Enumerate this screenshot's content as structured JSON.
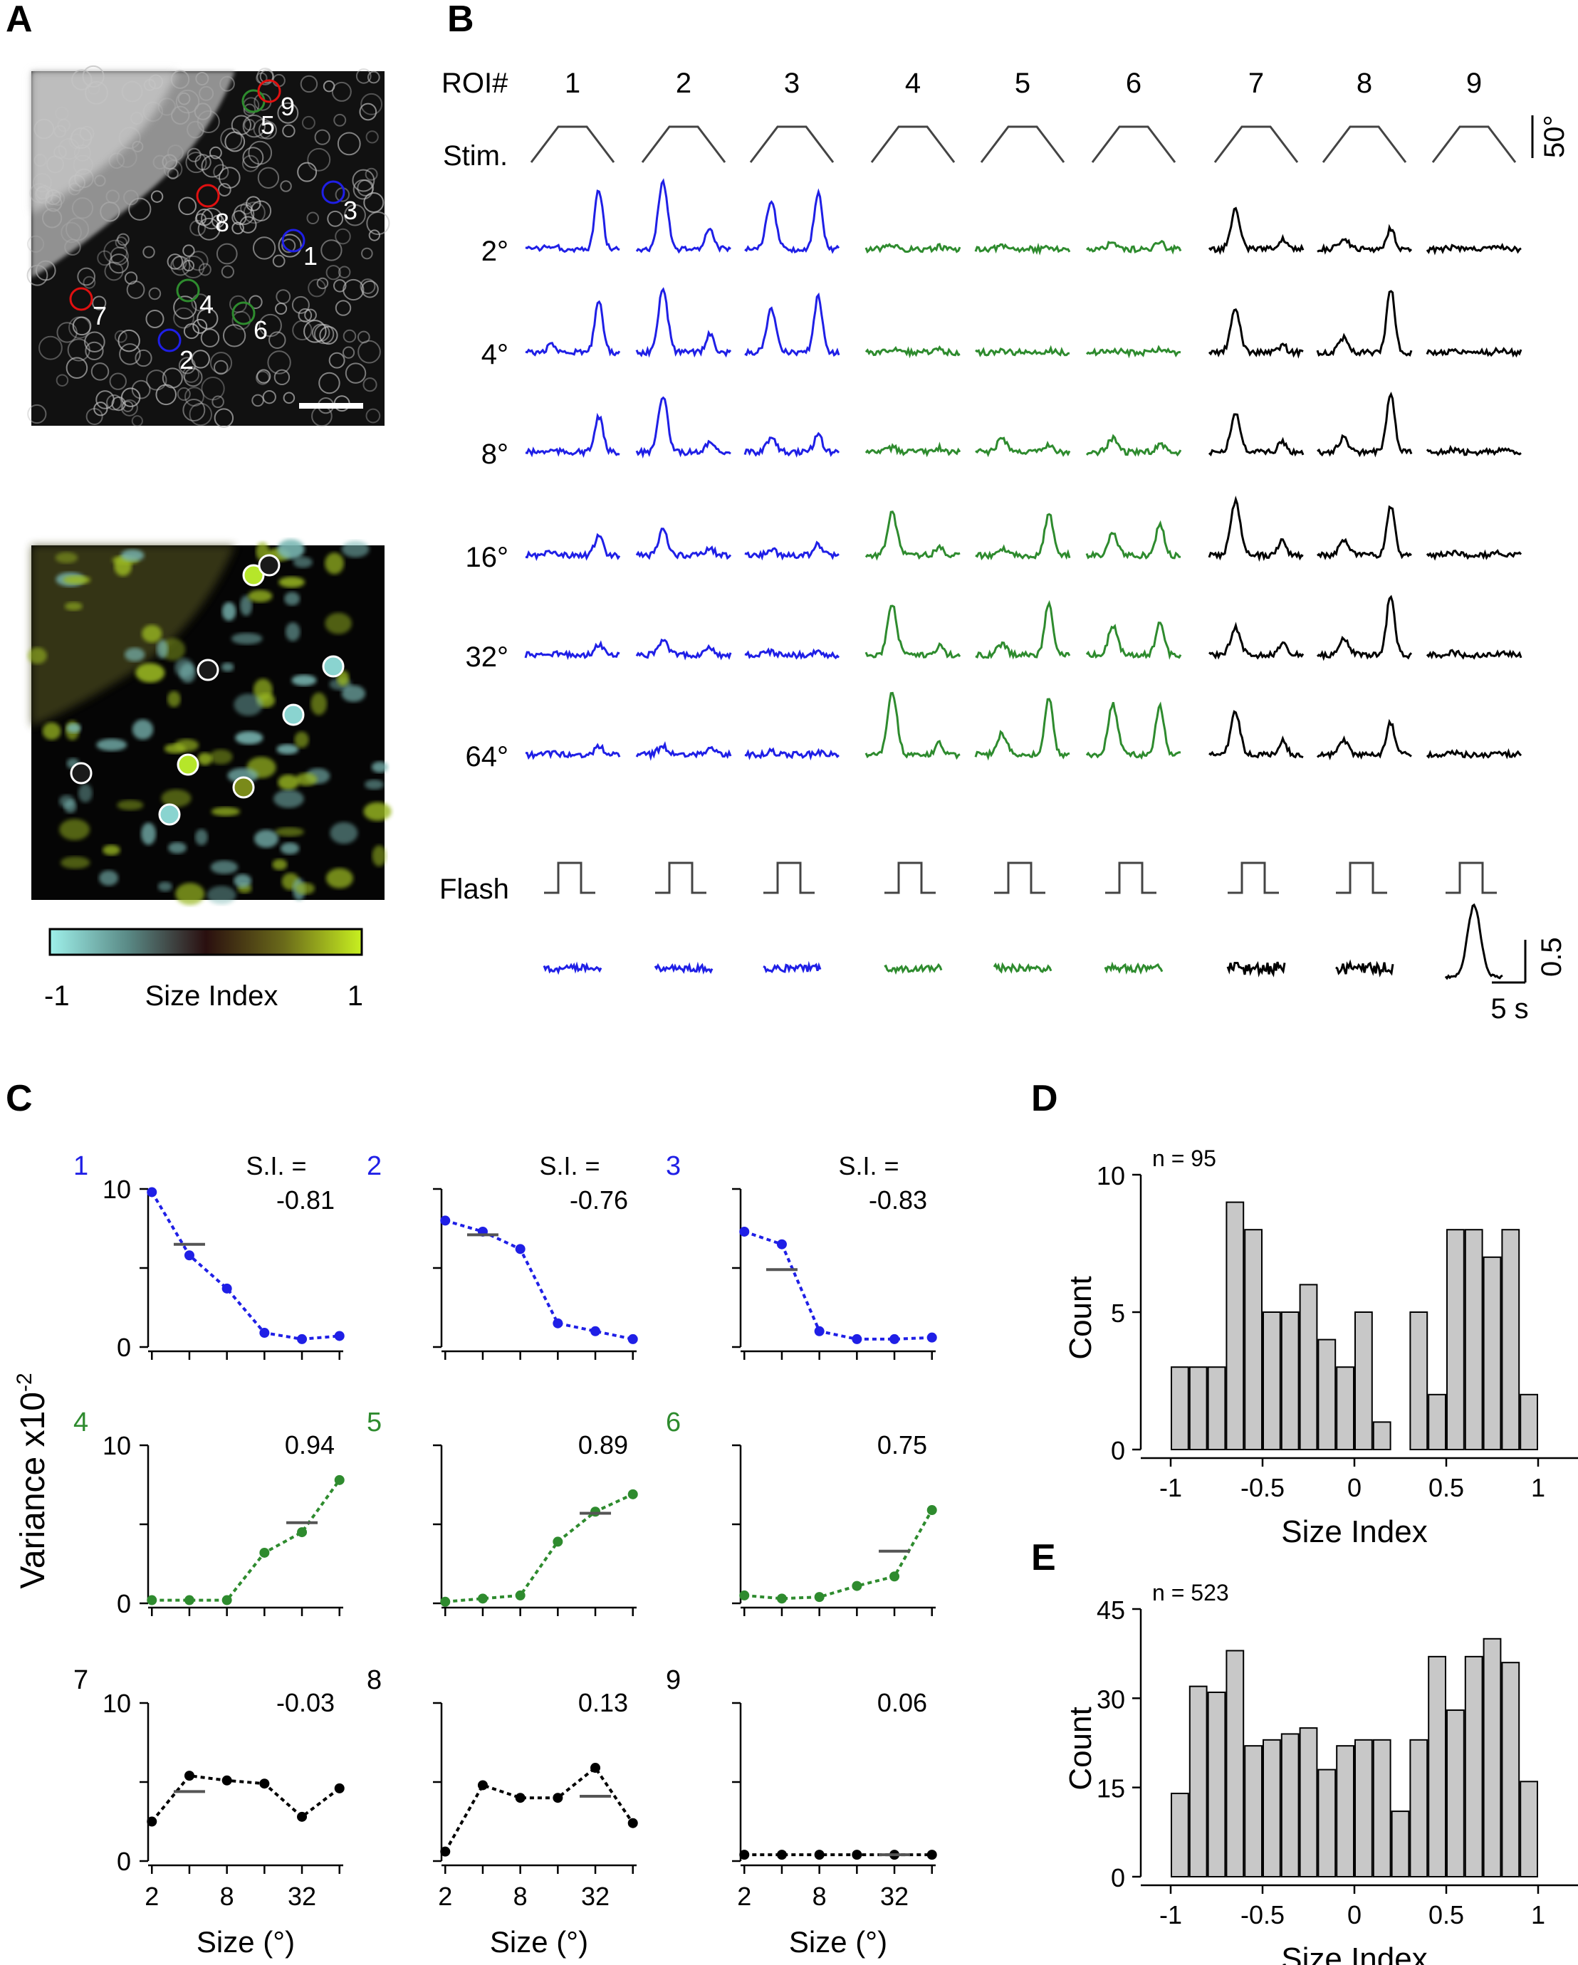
{
  "panel_labels": {
    "a": "A",
    "b": "B",
    "c": "C",
    "d": "D",
    "e": "E"
  },
  "colors": {
    "blue": "#1f1fe6",
    "green": "#2e8b2e",
    "black": "#000000",
    "red": "#e01010",
    "bar_fill": "#c8c8c8"
  },
  "panelA": {
    "roi_labels": [
      "1",
      "2",
      "3",
      "4",
      "5",
      "6",
      "7",
      "8",
      "9"
    ],
    "roi_colors": [
      "blue",
      "blue",
      "blue",
      "green",
      "green",
      "green",
      "red",
      "red",
      "red"
    ],
    "colorbar_min": "-1",
    "colorbar_label": "Size Index",
    "colorbar_max": "1"
  },
  "panelB": {
    "header": "ROI#",
    "roi_numbers": [
      "1",
      "2",
      "3",
      "4",
      "5",
      "6",
      "7",
      "8",
      "9"
    ],
    "roi_colors": [
      "blue",
      "blue",
      "blue",
      "green",
      "green",
      "green",
      "black",
      "black",
      "black"
    ],
    "stim_label": "Stim.",
    "stim_scale": "50°",
    "sizes": [
      "2°",
      "4°",
      "8°",
      "16°",
      "32°",
      "64°"
    ],
    "flash_label": "Flash",
    "amp_scale": "0.5",
    "time_scale": "5 s"
  },
  "panelC": {
    "ylabel": "Variance x10",
    "ylabel_exp": "-2",
    "xlabel": "Size (°)",
    "si_label": "S.I. =",
    "y_tick_labels": [
      "0",
      "10"
    ],
    "x_tick_labels": [
      "2",
      "8",
      "32"
    ]
  },
  "chart_data": [
    {
      "type": "line",
      "x": [
        2,
        4,
        8,
        16,
        32,
        64
      ],
      "xscale": "log",
      "ylim": [
        0,
        10
      ],
      "panels": [
        {
          "roi": "1",
          "color": "blue",
          "si": "-0.81",
          "values": [
            9.8,
            5.8,
            3.7,
            0.9,
            0.5,
            0.7
          ],
          "mean": 6.5
        },
        {
          "roi": "2",
          "color": "blue",
          "si": "-0.76",
          "values": [
            8.0,
            7.3,
            6.2,
            1.5,
            1.0,
            0.5
          ],
          "mean": 7.1
        },
        {
          "roi": "3",
          "color": "blue",
          "si": "-0.83",
          "values": [
            7.3,
            6.5,
            1.0,
            0.5,
            0.5,
            0.6
          ],
          "mean": 4.9
        },
        {
          "roi": "4",
          "color": "green",
          "si": "0.94",
          "values": [
            0.2,
            0.2,
            0.2,
            3.2,
            4.5,
            7.8
          ],
          "mean": 5.1
        },
        {
          "roi": "5",
          "color": "green",
          "si": "0.89",
          "values": [
            0.1,
            0.3,
            0.5,
            3.9,
            5.8,
            6.9
          ],
          "mean": 5.7
        },
        {
          "roi": "6",
          "color": "green",
          "si": "0.75",
          "values": [
            0.5,
            0.3,
            0.4,
            1.1,
            1.7,
            5.9
          ],
          "mean": 3.3
        },
        {
          "roi": "7",
          "color": "black",
          "si": "-0.03",
          "values": [
            2.5,
            5.4,
            5.1,
            4.9,
            2.8,
            4.6
          ],
          "mean": 4.4
        },
        {
          "roi": "8",
          "color": "black",
          "si": "0.13",
          "values": [
            0.6,
            4.8,
            4.0,
            4.0,
            5.9,
            2.4
          ],
          "mean": 4.1
        },
        {
          "roi": "9",
          "color": "black",
          "si": "0.06",
          "values": [
            0.4,
            0.4,
            0.4,
            0.4,
            0.4,
            0.4
          ],
          "mean": 0.4
        }
      ]
    },
    {
      "type": "bar",
      "n_label": "n = 95",
      "xlabel": "Size Index",
      "ylabel": "Count",
      "xlim": [
        -1,
        1
      ],
      "ylim": [
        0,
        10
      ],
      "y_ticks": [
        "0",
        "5",
        "10"
      ],
      "x_ticks": [
        "-1",
        "-0.5",
        "0",
        "0.5",
        "1"
      ],
      "bin_width": 0.1,
      "bin_left_edges": [
        -1.0,
        -0.9,
        -0.8,
        -0.7,
        -0.6,
        -0.5,
        -0.4,
        -0.3,
        -0.2,
        -0.1,
        0.0,
        0.1,
        0.2,
        0.3,
        0.4,
        0.5,
        0.6,
        0.7,
        0.8,
        0.9
      ],
      "values": [
        3,
        3,
        3,
        9,
        8,
        5,
        5,
        6,
        4,
        3,
        5,
        1,
        0,
        5,
        2,
        8,
        8,
        7,
        8,
        2
      ]
    },
    {
      "type": "bar",
      "n_label": "n = 523",
      "xlabel": "Size Index",
      "ylabel": "Count",
      "xlim": [
        -1,
        1
      ],
      "ylim": [
        0,
        45
      ],
      "y_ticks": [
        "0",
        "15",
        "30",
        "45"
      ],
      "x_ticks": [
        "-1",
        "-0.5",
        "0",
        "0.5",
        "1"
      ],
      "bin_width": 0.1,
      "bin_left_edges": [
        -1.0,
        -0.9,
        -0.8,
        -0.7,
        -0.6,
        -0.5,
        -0.4,
        -0.3,
        -0.2,
        -0.1,
        0.0,
        0.1,
        0.2,
        0.3,
        0.4,
        0.5,
        0.6,
        0.7,
        0.8,
        0.9
      ],
      "values": [
        14,
        32,
        31,
        38,
        22,
        23,
        24,
        25,
        18,
        22,
        23,
        23,
        11,
        23,
        37,
        28,
        37,
        40,
        36,
        16
      ]
    }
  ]
}
